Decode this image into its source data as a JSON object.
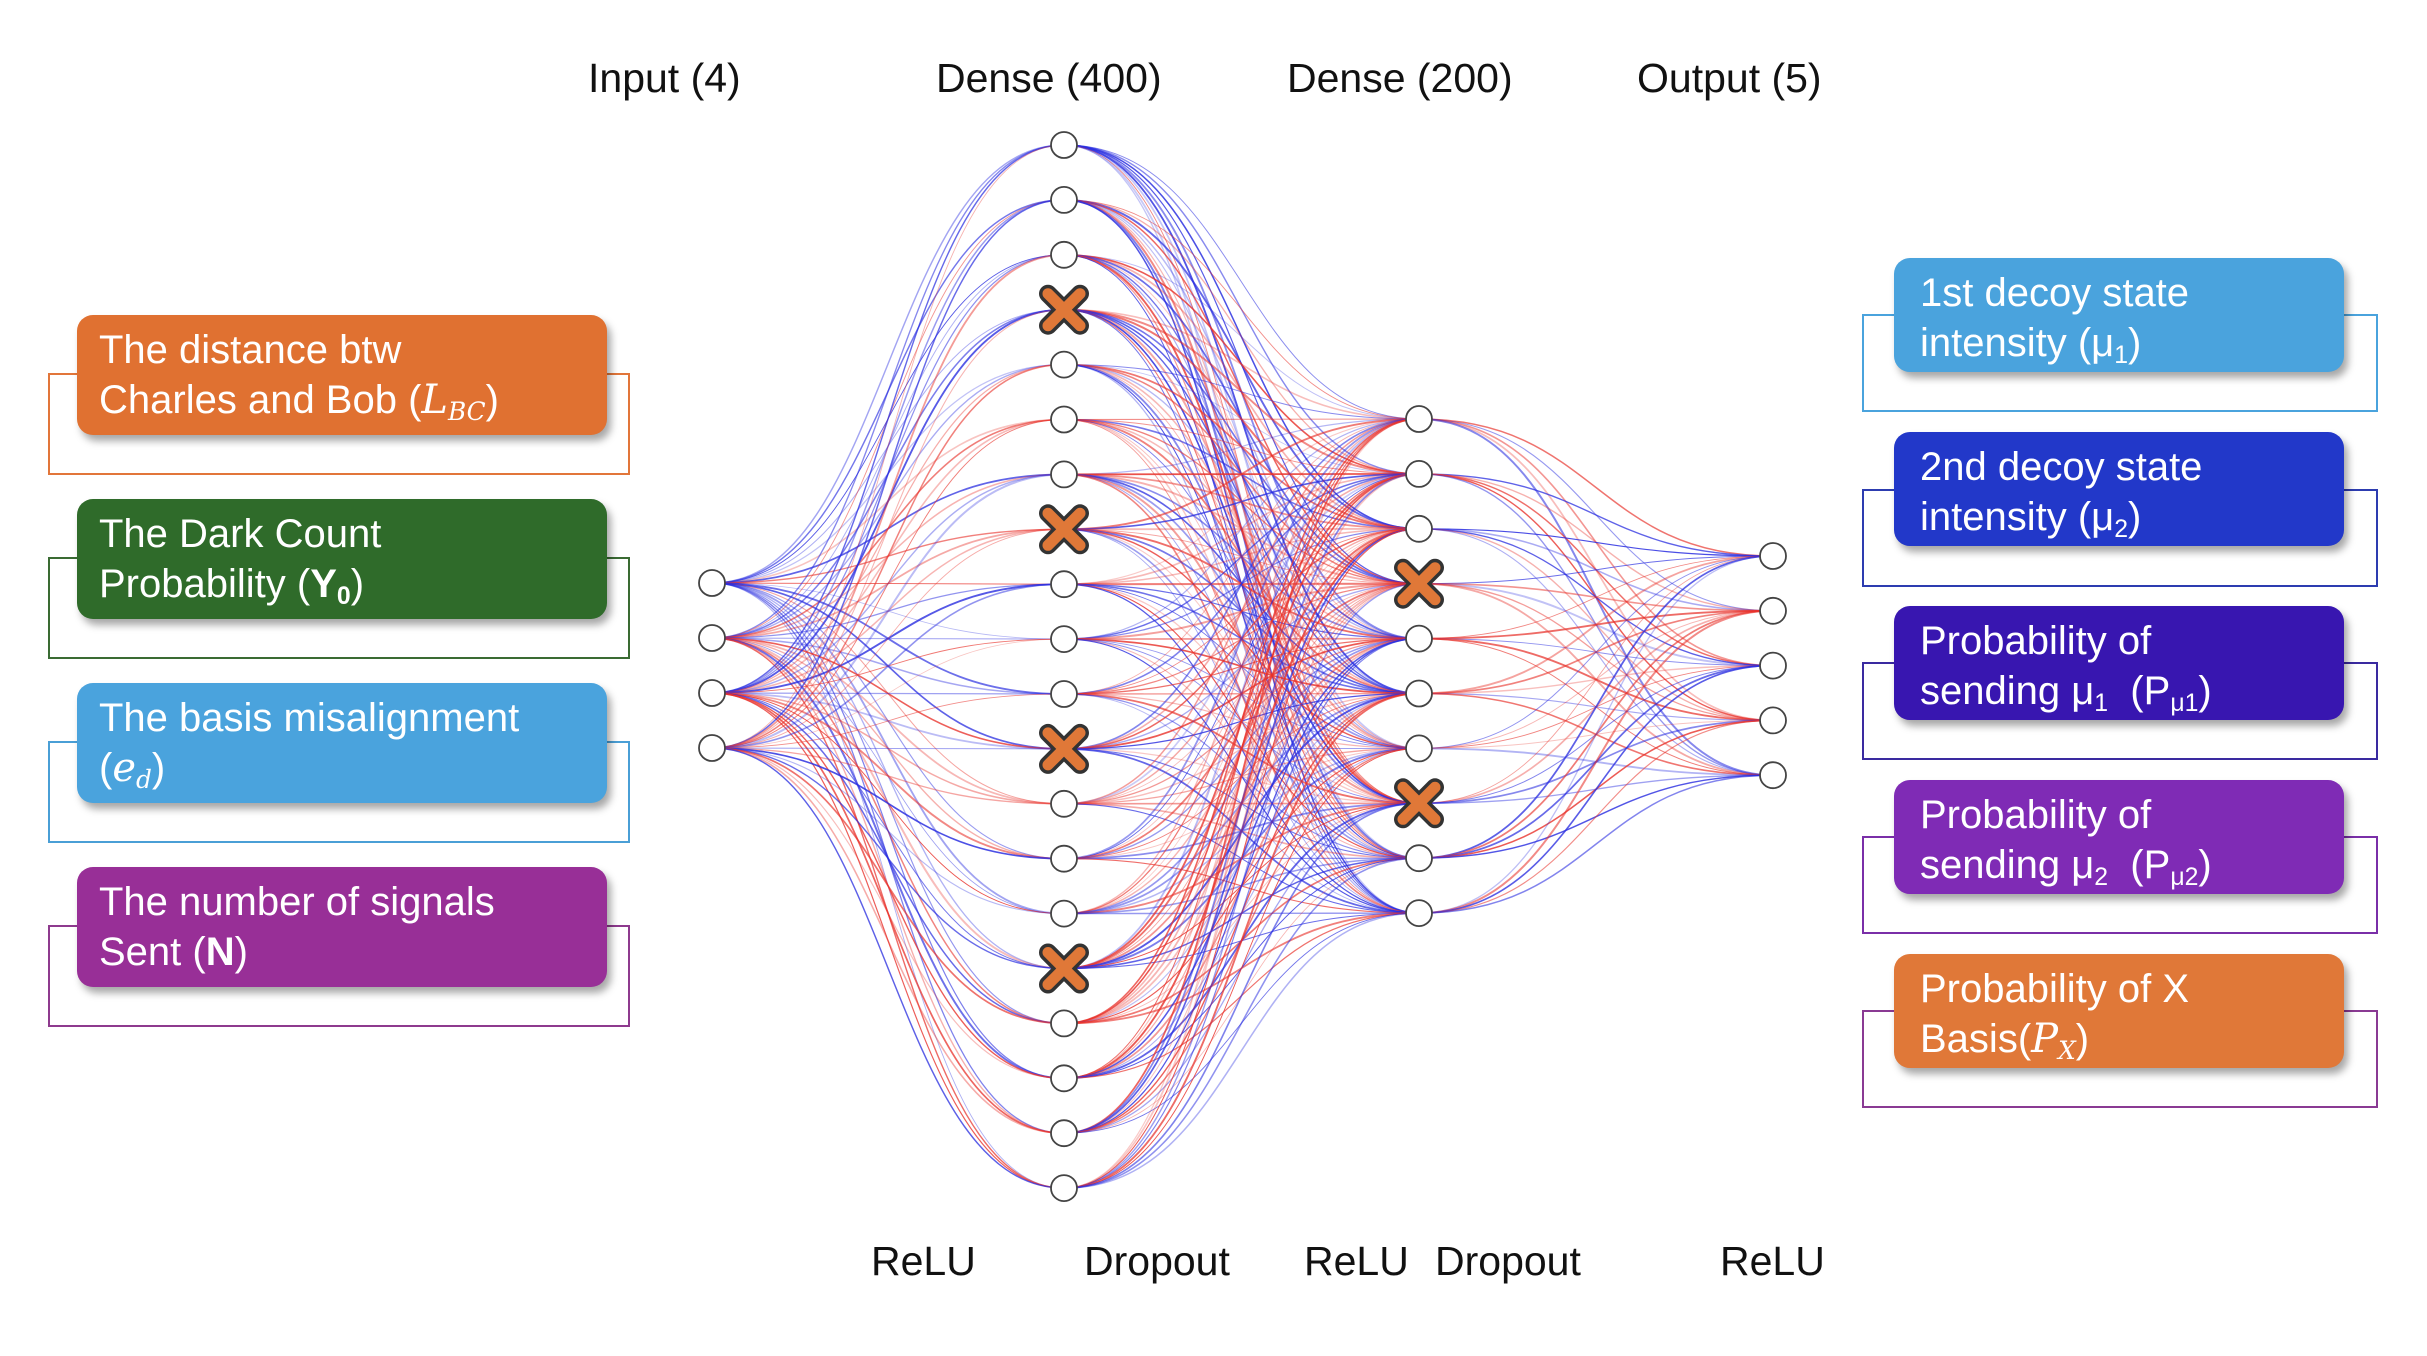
{
  "layers": [
    {
      "title": "Input (4)",
      "nodes": 4
    },
    {
      "title": "Dense (400)",
      "nodes": 20,
      "dropped_nodes": [
        3,
        7,
        11,
        15
      ]
    },
    {
      "title": "Dense (200)",
      "nodes": 10,
      "dropped_nodes": [
        3,
        7
      ]
    },
    {
      "title": "Output (5)",
      "nodes": 5
    }
  ],
  "activations": [
    "ReLU",
    "Dropout",
    "ReLU",
    "Dropout",
    "ReLU"
  ],
  "inputs": [
    {
      "line1": "The distance btw",
      "line2_text": "Charles and Bob (",
      "line2_var": "L",
      "line2_sub": "BC",
      "line2_end": ")",
      "color": "#e07131",
      "edge": "#e2763a"
    },
    {
      "line1": "The Dark Count",
      "line2_text": "Probability (",
      "line2_bold": "Y",
      "line2_sub": "0",
      "line2_end": ")",
      "color": "#2f6b2a",
      "edge": "#3a6b33"
    },
    {
      "line1": "The basis misalignment",
      "line2_text": "(",
      "line2_var": "e",
      "line2_sub": "d",
      "line2_end": ")",
      "color": "#4aa3dd",
      "edge": "#4a9fd6"
    },
    {
      "line1": "The number of signals",
      "line2_text": "Sent (",
      "line2_bold": "N",
      "line2_end": ")",
      "color": "#982f97",
      "edge": "#8e3a8e"
    }
  ],
  "outputs": [
    {
      "line1": "1st decoy state",
      "line2_text": "intensity (μ",
      "line2_sub": "1",
      "line2_end": ")",
      "color": "#4aa3dd",
      "edge": "#4aa3dd"
    },
    {
      "line1": "2nd decoy state",
      "line2_text": "intensity (μ",
      "line2_sub": "2",
      "line2_end": ")",
      "color": "#2238c9",
      "edge": "#2d3cb0"
    },
    {
      "line1": "Probability of",
      "line2_text": "sending μ",
      "line2_sub": "1",
      "line2_mid": "  (P",
      "line2_sub2": "μ1",
      "line2_end": ")",
      "color": "#3816b0",
      "edge": "#3a2aa0"
    },
    {
      "line1": "Probability of",
      "line2_text": "sending μ",
      "line2_sub": "2",
      "line2_mid": "  (P",
      "line2_sub2": "μ2",
      "line2_end": ")",
      "color": "#7f2bb5",
      "edge": "#7a2fa8"
    },
    {
      "line1": "Probability of X",
      "line2_text": "Basis(",
      "line2_var": "P",
      "line2_sub": "X",
      "line2_end": ")",
      "color": "#e07838",
      "edge": "#8a3a93"
    }
  ],
  "colors": {
    "positive_weight": "#e8322b",
    "negative_weight": "#2a2ee0",
    "dropout_marker": "#e07838"
  }
}
